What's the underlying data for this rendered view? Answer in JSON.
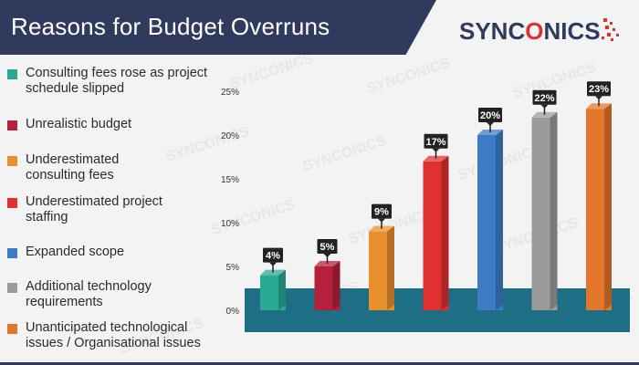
{
  "header": {
    "title": "Reasons for Budget Overruns",
    "logo_main": "SYNC",
    "logo_hl": "O",
    "logo_rest": "NICS"
  },
  "watermark_text": "SYNCONICS",
  "legend": [
    {
      "label": "Consulting fees rose as project schedule slipped",
      "color": "#2aaa95"
    },
    {
      "label": "Unrealistic budget",
      "color": "#b5203a"
    },
    {
      "label": "Underestimated consulting fees",
      "color": "#e8902d"
    },
    {
      "label": "Underestimated project staffing",
      "color": "#e0302f"
    },
    {
      "label": "Expanded scope",
      "color": "#3d7cc4"
    },
    {
      "label": "Additional technology requirements",
      "color": "#9b9b9b"
    },
    {
      "label": "Unanticipated technological issues / Organisational issues",
      "color": "#e2762a"
    }
  ],
  "chart_data": {
    "type": "bar",
    "categories": [
      "Consulting fees rose as project schedule slipped",
      "Unrealistic budget",
      "Underestimated consulting fees",
      "Underestimated project staffing",
      "Expanded scope",
      "Additional technology requirements",
      "Unanticipated technological issues / Organisational issues"
    ],
    "values": [
      4,
      5,
      9,
      17,
      20,
      22,
      23
    ],
    "value_labels": [
      "4%",
      "5%",
      "9%",
      "17%",
      "20%",
      "22%",
      "23%"
    ],
    "colors": [
      "#2aaa95",
      "#b5203a",
      "#e8902d",
      "#e0302f",
      "#3d7cc4",
      "#9b9b9b",
      "#e2762a"
    ],
    "ylim": [
      0,
      25
    ],
    "yticks": [
      0,
      5,
      10,
      15,
      20,
      25
    ],
    "ytick_labels": [
      "0%",
      "5%",
      "10%",
      "15%",
      "20%",
      "25%"
    ],
    "title": "Reasons for Budget Overruns",
    "xlabel": "",
    "ylabel": "",
    "grid": false,
    "base_band_color": "#1e6f86"
  }
}
